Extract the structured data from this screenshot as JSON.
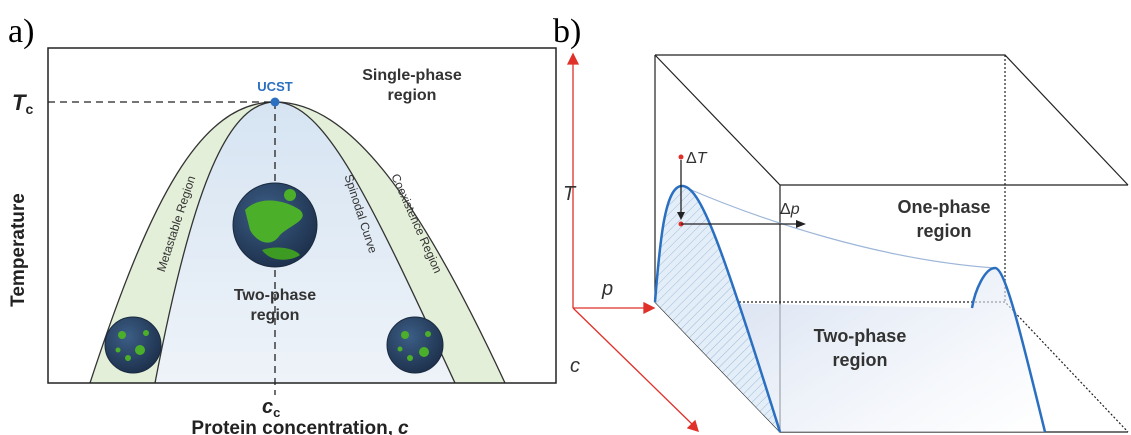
{
  "panel_a": {
    "label": "a)",
    "y_axis_label": "Temperature",
    "x_axis_label": {
      "text": "Protein concentration,",
      "var": "c"
    },
    "tc": {
      "main": "T",
      "sub": "c"
    },
    "cc": {
      "main": "c",
      "sub": "c"
    },
    "ucst": "UCST",
    "single_phase": [
      "Single-phase",
      "region"
    ],
    "metastable": "Metastable Region",
    "spinodal": "Spinodal Curve",
    "coexistence": "Coexistence Region",
    "two_phase": [
      "Two-phase",
      "region"
    ]
  },
  "panel_b": {
    "label": "b)",
    "axes": {
      "t": "T",
      "p": "p",
      "c": "c"
    },
    "delta_t": {
      "delta": "Δ",
      "var": "T"
    },
    "delta_p": {
      "delta": "Δ",
      "var": "p"
    },
    "one_phase": [
      "One-phase",
      "region"
    ],
    "two_phase": [
      "Two-phase",
      "region"
    ]
  }
}
